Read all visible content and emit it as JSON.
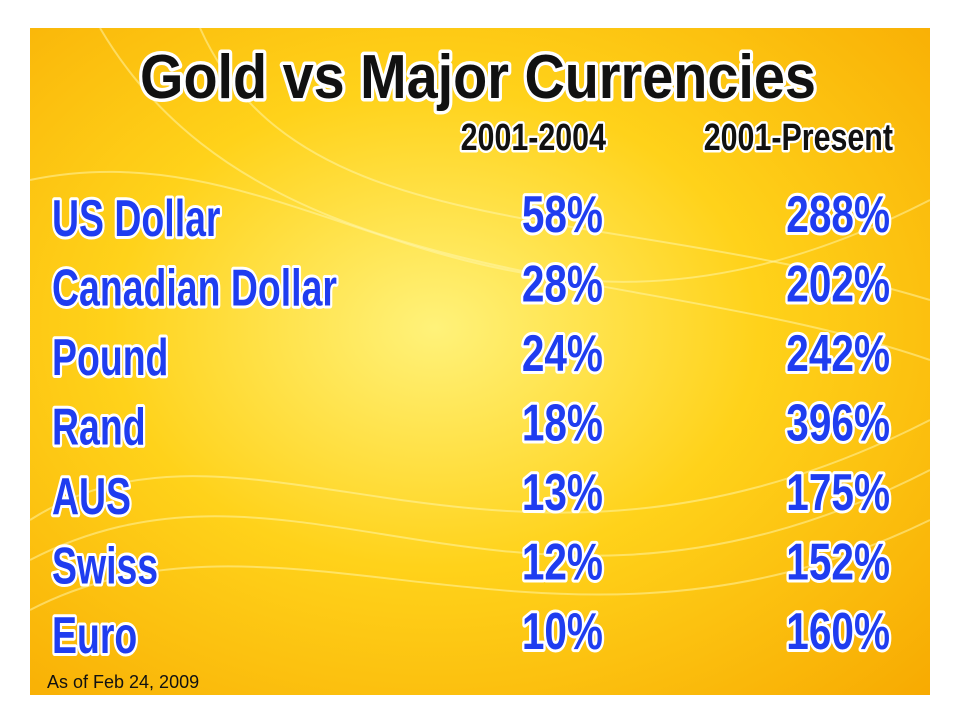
{
  "title": "Gold vs Major Currencies",
  "table": {
    "columns": [
      "2001-2004",
      "2001-Present"
    ],
    "rows": [
      [
        "US Dollar",
        "58%",
        "288%"
      ],
      [
        "Canadian Dollar",
        "28%",
        "202%"
      ],
      [
        "Pound",
        "24%",
        "242%"
      ],
      [
        "Rand",
        "18%",
        "396%"
      ],
      [
        "AUS",
        "13%",
        "175%"
      ],
      [
        "Swiss",
        "12%",
        "152%"
      ],
      [
        "Euro",
        "10%",
        "160%"
      ]
    ]
  },
  "footnote": "As of Feb 24, 2009"
}
